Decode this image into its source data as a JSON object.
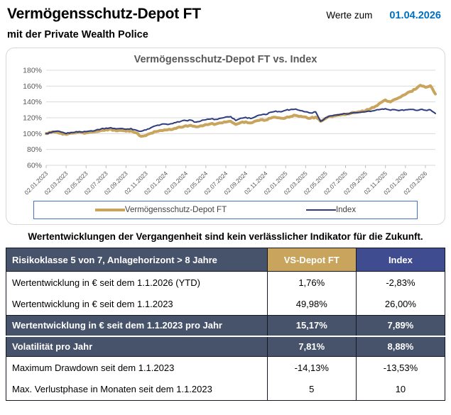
{
  "header": {
    "title": "Vermögensschutz-Depot FT",
    "subtitle": "mit der Private Wealth Police",
    "as_of_label": "Werte zum",
    "as_of_date": "01.04.2026",
    "as_of_date_color": "#0070C0"
  },
  "chart_data": {
    "type": "line",
    "title": "Vermögensschutz-Depot FT vs. Index",
    "ylabel": "",
    "xlabel": "",
    "ylim": [
      60,
      185
    ],
    "y_ticks": [
      180,
      160,
      140,
      120,
      100,
      80,
      60
    ],
    "y_tick_suffix": "%",
    "grid": true,
    "grid_color": "#d9d9d9",
    "axis_text_color": "#595959",
    "x_months_total": 39,
    "x_tick_months": [
      0,
      2,
      4,
      6,
      8,
      10,
      12,
      14,
      16,
      18,
      20,
      22,
      24,
      26,
      28,
      30,
      32,
      34,
      36,
      38
    ],
    "x_tick_labels": [
      "02.01.2023",
      "02.03.2023",
      "02.05.2023",
      "02.07.2023",
      "02.09.2023",
      "02.11.2023",
      "02.01.2024",
      "02.03.2024",
      "02.05.2024",
      "02.07.2024",
      "02.09.2024",
      "02.11.2024",
      "02.01.2025",
      "02.03.2025",
      "02.05.2025",
      "02.07.2025",
      "02.09.2025",
      "02.11.2025",
      "02.01.2026",
      "02.03.2026"
    ],
    "x_step_months": 0.5,
    "legend_position": "bottom",
    "series": [
      {
        "name": "Vermögensschutz-Depot FT",
        "color": "#c9a45d",
        "stroke_width": 4,
        "noise": 0.9,
        "values": [
          100.0,
          101.5,
          102.0,
          100.5,
          99.0,
          100.5,
          101.0,
          101.5,
          101.0,
          102.0,
          102.5,
          104.0,
          105.0,
          105.5,
          103.5,
          104.0,
          103.0,
          103.5,
          101.0,
          96.5,
          97.5,
          100.5,
          102.5,
          104.0,
          104.5,
          105.0,
          106.5,
          108.0,
          110.0,
          110.5,
          108.5,
          110.0,
          111.5,
          112.5,
          112.0,
          113.5,
          114.5,
          115.5,
          111.5,
          114.0,
          115.0,
          113.5,
          116.0,
          117.5,
          117.0,
          119.5,
          120.5,
          119.5,
          120.0,
          121.5,
          123.0,
          122.0,
          121.0,
          119.5,
          121.0,
          115.5,
          119.0,
          121.5,
          122.5,
          123.5,
          124.0,
          125.5,
          126.5,
          127.5,
          129.0,
          131.5,
          134.5,
          139.0,
          142.5,
          140.0,
          143.5,
          146.0,
          149.5,
          153.0,
          156.0,
          161.0,
          158.5,
          160.5,
          150.0
        ]
      },
      {
        "name": "Index",
        "color": "#2e3c7e",
        "stroke_width": 2,
        "noise": 0.7,
        "values": [
          100.0,
          101.5,
          103.0,
          102.0,
          100.0,
          101.5,
          102.5,
          102.0,
          102.5,
          103.5,
          104.5,
          106.0,
          107.0,
          107.5,
          106.0,
          106.5,
          105.5,
          106.5,
          104.5,
          103.0,
          104.5,
          107.5,
          110.0,
          111.5,
          112.0,
          112.5,
          114.0,
          115.5,
          116.5,
          117.0,
          114.5,
          116.0,
          117.5,
          118.5,
          118.0,
          119.5,
          121.0,
          121.5,
          116.5,
          119.5,
          120.5,
          119.0,
          121.5,
          123.5,
          124.0,
          127.0,
          128.5,
          127.5,
          129.5,
          130.5,
          131.0,
          129.0,
          127.5,
          126.0,
          127.5,
          115.5,
          120.0,
          122.5,
          123.5,
          124.5,
          125.0,
          126.0,
          126.5,
          127.0,
          127.5,
          128.0,
          129.5,
          130.5,
          131.5,
          129.5,
          130.0,
          129.5,
          130.0,
          130.5,
          129.5,
          130.5,
          129.5,
          130.0,
          125.5
        ]
      }
    ]
  },
  "disclaimer": "Wertentwicklungen der Vergangenheit sind kein verlässlicher Indikator für die Zukunft.",
  "table": {
    "colors": {
      "slate": "#47536a",
      "gold": "#c9a45d",
      "indigo": "#3f4c8f"
    },
    "header": {
      "label": "Risikoklasse 5 von 7, Anlagehorizont > 8 Jahre",
      "col_vs": "VS-Depot FT",
      "col_index": "Index"
    },
    "rows": [
      {
        "label": "Wertentwicklung in € seit dem 1.1.2026 (YTD)",
        "vs": "1,76%",
        "index": "-2,83%",
        "highlight": false
      },
      {
        "label": "Wertentwicklung in € seit dem 1.1.2023",
        "vs": "49,98%",
        "index": "26,00%",
        "highlight": false
      },
      {
        "label": "Wertentwicklung in € seit dem 1.1.2023 pro Jahr",
        "vs": "15,17%",
        "index": "7,89%",
        "highlight": true
      },
      {
        "label": "Volatilität pro Jahr",
        "vs": "7,81%",
        "index": "8,88%",
        "highlight": true
      },
      {
        "label": "Maximum Drawdown seit dem 1.1.2023",
        "vs": "-14,13%",
        "index": "-13,53%",
        "highlight": false
      },
      {
        "label": "Max. Verlustphase in Monaten seit dem 1.1.2023",
        "vs": "5",
        "index": "10",
        "highlight": false
      }
    ]
  }
}
